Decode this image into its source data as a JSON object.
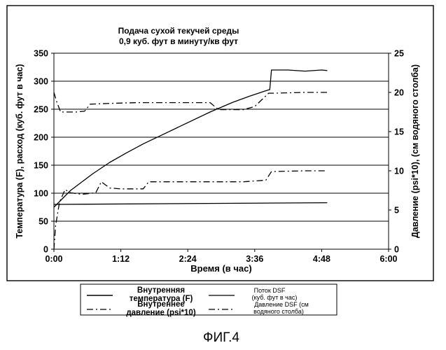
{
  "chart_data": {
    "type": "line",
    "title": [
      "Подача сухой текучей среды",
      "0,9 куб. фут в минуту/кв фут"
    ],
    "xlabel": "Время (в час)",
    "ylabel_left": "Температура (F), расход (куб. фут в час)",
    "ylabel_right": "Давление (psi*10), (см водяного столба)",
    "x_unit": "hours",
    "xlim": [
      0,
      6
    ],
    "ylim_left": [
      0,
      350
    ],
    "ylim_right": [
      0,
      25
    ],
    "x_ticks": [
      {
        "value": 0,
        "label": "0:00"
      },
      {
        "value": 1.2,
        "label": "1:12"
      },
      {
        "value": 2.4,
        "label": "2:24"
      },
      {
        "value": 3.6,
        "label": "3:36"
      },
      {
        "value": 4.8,
        "label": "4:48"
      },
      {
        "value": 6,
        "label": "6:00"
      }
    ],
    "y_ticks_left": [
      "0",
      "50",
      "100",
      "150",
      "200",
      "250",
      "300",
      "350"
    ],
    "y_ticks_right": [
      "0",
      "5",
      "10",
      "15",
      "20",
      "25"
    ],
    "grid": "horizontal",
    "series": [
      {
        "name": "Внутренняя температура (F)",
        "axis": "left",
        "style": "solid",
        "x": [
          0,
          0.05,
          0.1,
          0.2,
          0.3,
          0.5,
          0.7,
          1.0,
          1.3,
          1.6,
          2.0,
          2.4,
          2.8,
          3.2,
          3.5,
          3.8,
          3.87,
          3.9,
          4.2,
          4.5,
          4.8,
          4.9
        ],
        "y": [
          75,
          80,
          85,
          95,
          105,
          120,
          135,
          155,
          172,
          188,
          207,
          226,
          245,
          262,
          273,
          283,
          285,
          320,
          320,
          318,
          320,
          319
        ]
      },
      {
        "name": "Поток DSF (куб. фут в час)",
        "axis": "left",
        "style": "solid",
        "x": [
          0,
          4.9
        ],
        "y": [
          80,
          83
        ]
      },
      {
        "name": "Внутреннее давление (psi*10)",
        "axis": "right",
        "style": "dash-dot",
        "x": [
          0,
          0.03,
          0.1,
          0.2,
          0.3,
          0.5,
          0.75,
          0.85,
          1.0,
          1.2,
          1.6,
          1.7,
          2.4,
          3.4,
          3.8,
          3.9,
          4.5,
          4.9
        ],
        "y": [
          0,
          3.0,
          6.0,
          7.6,
          7.2,
          7.0,
          7.2,
          8.6,
          7.8,
          7.7,
          7.7,
          8.6,
          8.6,
          8.6,
          8.8,
          9.9,
          10.0,
          10.0
        ]
      },
      {
        "name": "Давление DSF (см водяного столба)",
        "axis": "right",
        "style": "dash-dot",
        "x": [
          0,
          0.05,
          0.12,
          0.25,
          0.4,
          0.55,
          0.65,
          1.0,
          1.5,
          2.0,
          2.5,
          2.8,
          2.95,
          3.1,
          3.4,
          3.6,
          3.85,
          3.95,
          4.5,
          4.9
        ],
        "y": [
          20,
          18.8,
          17.5,
          17.5,
          17.5,
          17.6,
          18.5,
          18.6,
          18.7,
          18.7,
          18.7,
          18.7,
          17.8,
          17.8,
          17.8,
          18.2,
          19.9,
          19.9,
          20,
          20
        ]
      }
    ],
    "legend": {
      "placement": "bottom",
      "entries": [
        {
          "label": "Внутренняя температура (F)",
          "style": "solid",
          "size": "large"
        },
        {
          "label": "Поток DSF (куб. фут в час)",
          "style": "solid",
          "size": "small"
        },
        {
          "label": "Внутреннее давление (psi*10)",
          "style": "dash-dot",
          "size": "large"
        },
        {
          "label": "Давление DSF (см водяного столба)",
          "style": "dash-dot",
          "size": "small"
        }
      ]
    }
  },
  "caption": "ФИГ.4"
}
